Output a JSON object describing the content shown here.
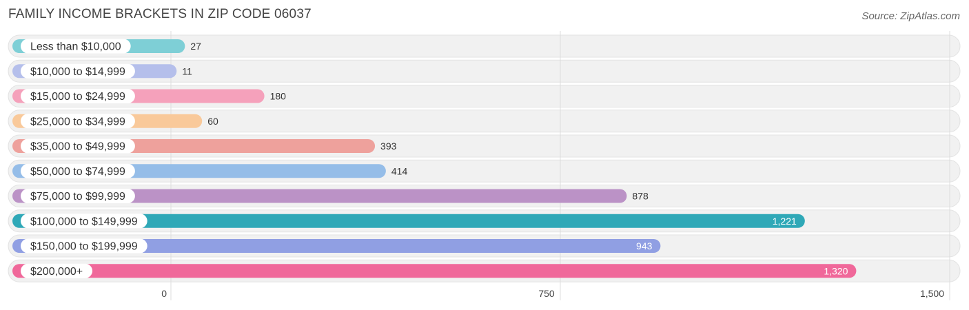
{
  "title": "FAMILY INCOME BRACKETS IN ZIP CODE 06037",
  "source": "Source: ZipAtlas.com",
  "chart_data": {
    "type": "bar",
    "orientation": "horizontal",
    "title": "FAMILY INCOME BRACKETS IN ZIP CODE 06037",
    "xlabel": "",
    "ylabel": "",
    "xlim": [
      0,
      1500
    ],
    "x_ticks": [
      0,
      750,
      1500
    ],
    "x_tick_labels": [
      "0",
      "750",
      "1,500"
    ],
    "grid": true,
    "categories": [
      "Less than $10,000",
      "$10,000 to $14,999",
      "$15,000 to $24,999",
      "$25,000 to $34,999",
      "$35,000 to $49,999",
      "$50,000 to $74,999",
      "$75,000 to $99,999",
      "$100,000 to $149,999",
      "$150,000 to $199,999",
      "$200,000+"
    ],
    "values": [
      27,
      11,
      180,
      60,
      393,
      414,
      878,
      1221,
      943,
      1320
    ],
    "value_labels": [
      "27",
      "11",
      "180",
      "60",
      "393",
      "414",
      "878",
      "1,221",
      "943",
      "1,320"
    ],
    "colors": [
      "#7ecfd6",
      "#b5bfeb",
      "#f5a1bb",
      "#f9c99a",
      "#eea19c",
      "#95bde8",
      "#bb92c6",
      "#2fa8b7",
      "#909fe3",
      "#f0689a"
    ]
  }
}
